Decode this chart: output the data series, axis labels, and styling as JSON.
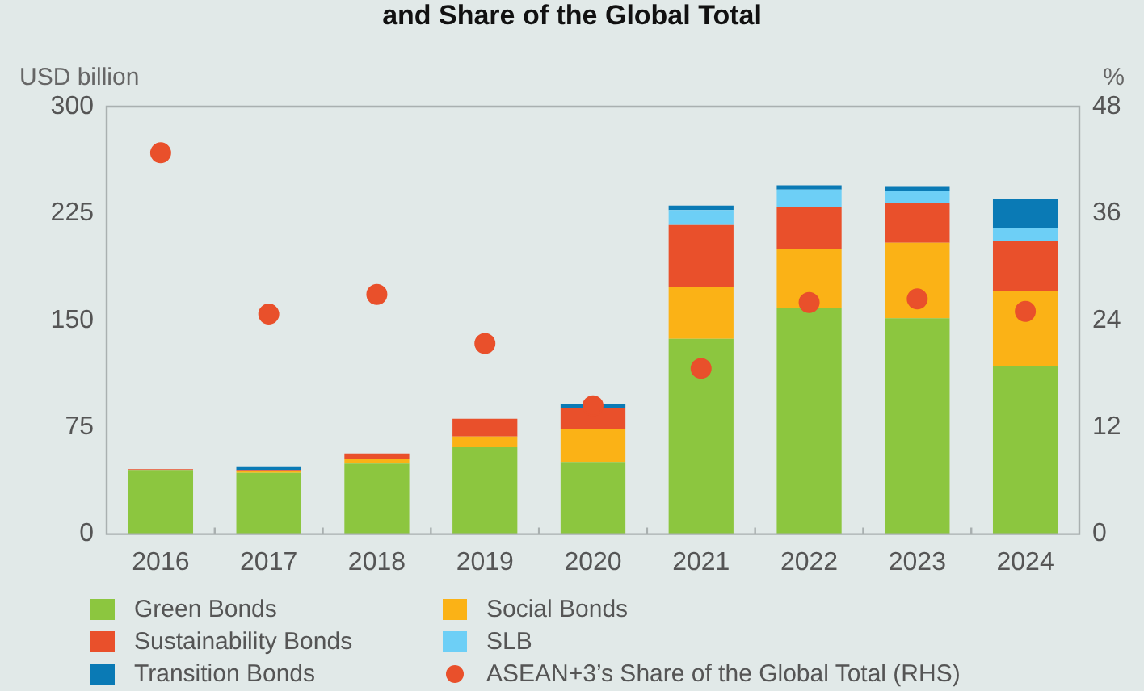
{
  "chart_data": {
    "type": "bar",
    "title": "and Share of the Global Total",
    "ylabel": "USD billion",
    "y2label": "%",
    "stacked": true,
    "grid": false,
    "legend": "bottom",
    "marker": "circle",
    "categories": [
      "2016",
      "2017",
      "2018",
      "2019",
      "2020",
      "2021",
      "2022",
      "2023",
      "2024"
    ],
    "ylim": [
      0,
      300
    ],
    "yticks": [
      0,
      75,
      150,
      225,
      300
    ],
    "y2lim": [
      0,
      48
    ],
    "y2ticks": [
      0,
      12,
      24,
      36,
      48
    ],
    "series": [
      {
        "name": "Green Bonds",
        "color": "#8cc63f",
        "values": [
          45,
          43,
          49.5,
          61,
          50.6,
          137,
          158.6,
          151.5,
          117.7
        ]
      },
      {
        "name": "Social Bonds",
        "color": "#fbb216",
        "values": [
          0,
          1.5,
          3.4,
          7.5,
          22.9,
          36.4,
          41.2,
          52.9,
          52.9
        ]
      },
      {
        "name": "Sustainability Bonds",
        "color": "#e9502b",
        "values": [
          0.5,
          0.5,
          3.7,
          12.4,
          14.6,
          43.5,
          30,
          28.1,
          34.9
        ]
      },
      {
        "name": "SLB",
        "color": "#6dcff6",
        "values": [
          0,
          0,
          0,
          0,
          0,
          10.5,
          12,
          8.6,
          9.4
        ]
      },
      {
        "name": "Transition Bonds",
        "color": "#0a7ab5",
        "values": [
          0,
          2.5,
          0,
          0,
          3,
          3,
          3,
          2.6,
          20.2
        ]
      },
      {
        "name": "ASEAN+3’s Share of the Global Total (RHS)",
        "type": "scatter",
        "axis": "y2",
        "color": "#e9502b",
        "values": [
          42.8,
          24.7,
          26.9,
          21.4,
          14.4,
          18.6,
          26,
          26.4,
          25
        ]
      }
    ]
  }
}
